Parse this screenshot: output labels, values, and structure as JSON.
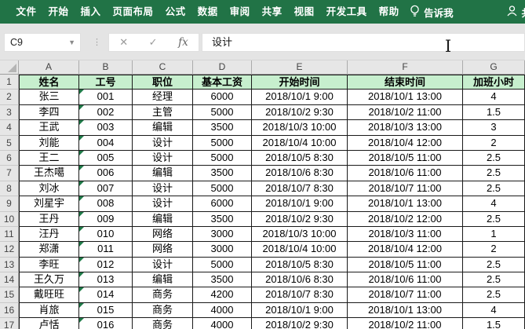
{
  "ribbon": {
    "tabs": [
      {
        "label": "文件"
      },
      {
        "label": "开始"
      },
      {
        "label": "插入"
      },
      {
        "label": "页面布局"
      },
      {
        "label": "公式"
      },
      {
        "label": "数据"
      },
      {
        "label": "审阅"
      },
      {
        "label": "共享"
      },
      {
        "label": "视图"
      },
      {
        "label": "开发工具"
      },
      {
        "label": "帮助"
      }
    ],
    "tell_me_label": "告诉我",
    "account_partial_label": "共"
  },
  "formula_bar": {
    "name_box": "C9",
    "cancel_glyph": "✕",
    "enter_glyph": "✓",
    "fx_label": "fx",
    "value": "设计"
  },
  "sheet": {
    "column_letters": [
      "A",
      "B",
      "C",
      "D",
      "E",
      "F",
      "G"
    ],
    "header_row_number": "1",
    "header_row": [
      "姓名",
      "工号",
      "职位",
      "基本工资",
      "开始时间",
      "结束时间",
      "加班小时"
    ],
    "rows": [
      {
        "num": "2",
        "cells": [
          "张三",
          "001",
          "经理",
          "6000",
          "2018/10/1 9:00",
          "2018/10/1 13:00",
          "4"
        ]
      },
      {
        "num": "3",
        "cells": [
          "李四",
          "002",
          "主管",
          "5000",
          "2018/10/2 9:30",
          "2018/10/2 11:00",
          "1.5"
        ]
      },
      {
        "num": "4",
        "cells": [
          "王武",
          "003",
          "编辑",
          "3500",
          "2018/10/3 10:00",
          "2018/10/3 13:00",
          "3"
        ]
      },
      {
        "num": "5",
        "cells": [
          "刘能",
          "004",
          "设计",
          "5000",
          "2018/10/4 10:00",
          "2018/10/4 12:00",
          "2"
        ]
      },
      {
        "num": "6",
        "cells": [
          "王二",
          "005",
          "设计",
          "5000",
          "2018/10/5 8:30",
          "2018/10/5 11:00",
          "2.5"
        ]
      },
      {
        "num": "7",
        "cells": [
          "王杰噶",
          "006",
          "编辑",
          "3500",
          "2018/10/6 8:30",
          "2018/10/6 11:00",
          "2.5"
        ]
      },
      {
        "num": "8",
        "cells": [
          "刘冰",
          "007",
          "设计",
          "5000",
          "2018/10/7 8:30",
          "2018/10/7 11:00",
          "2.5"
        ]
      },
      {
        "num": "9",
        "cells": [
          "刘星宇",
          "008",
          "设计",
          "6000",
          "2018/10/1 9:00",
          "2018/10/1 13:00",
          "4"
        ]
      },
      {
        "num": "10",
        "cells": [
          "王丹",
          "009",
          "编辑",
          "3500",
          "2018/10/2 9:30",
          "2018/10/2 12:00",
          "2.5"
        ]
      },
      {
        "num": "11",
        "cells": [
          "汪丹",
          "010",
          "网络",
          "3000",
          "2018/10/3 10:00",
          "2018/10/3 11:00",
          "1"
        ]
      },
      {
        "num": "12",
        "cells": [
          "郑潇",
          "011",
          "网络",
          "3000",
          "2018/10/4 10:00",
          "2018/10/4 12:00",
          "2"
        ]
      },
      {
        "num": "13",
        "cells": [
          "李旺",
          "012",
          "设计",
          "5000",
          "2018/10/5 8:30",
          "2018/10/5 11:00",
          "2.5"
        ]
      },
      {
        "num": "14",
        "cells": [
          "王久万",
          "013",
          "编辑",
          "3500",
          "2018/10/6 8:30",
          "2018/10/6 11:00",
          "2.5"
        ]
      },
      {
        "num": "15",
        "cells": [
          "戴旺旺",
          "014",
          "商务",
          "4200",
          "2018/10/7 8:30",
          "2018/10/7 11:00",
          "2.5"
        ]
      },
      {
        "num": "16",
        "cells": [
          "肖旅",
          "015",
          "商务",
          "4000",
          "2018/10/1 9:00",
          "2018/10/1 13:00",
          "4"
        ]
      },
      {
        "num": "17",
        "cells": [
          "卢恬",
          "016",
          "商务",
          "4000",
          "2018/10/2 9:30",
          "2018/10/2 11:00",
          "1.5"
        ]
      }
    ],
    "id_column_has_error_flag": true
  },
  "colors": {
    "ribbon_green": "#217346",
    "header_fill": "#c7efce",
    "error_flag_green": "#1f7a48"
  }
}
